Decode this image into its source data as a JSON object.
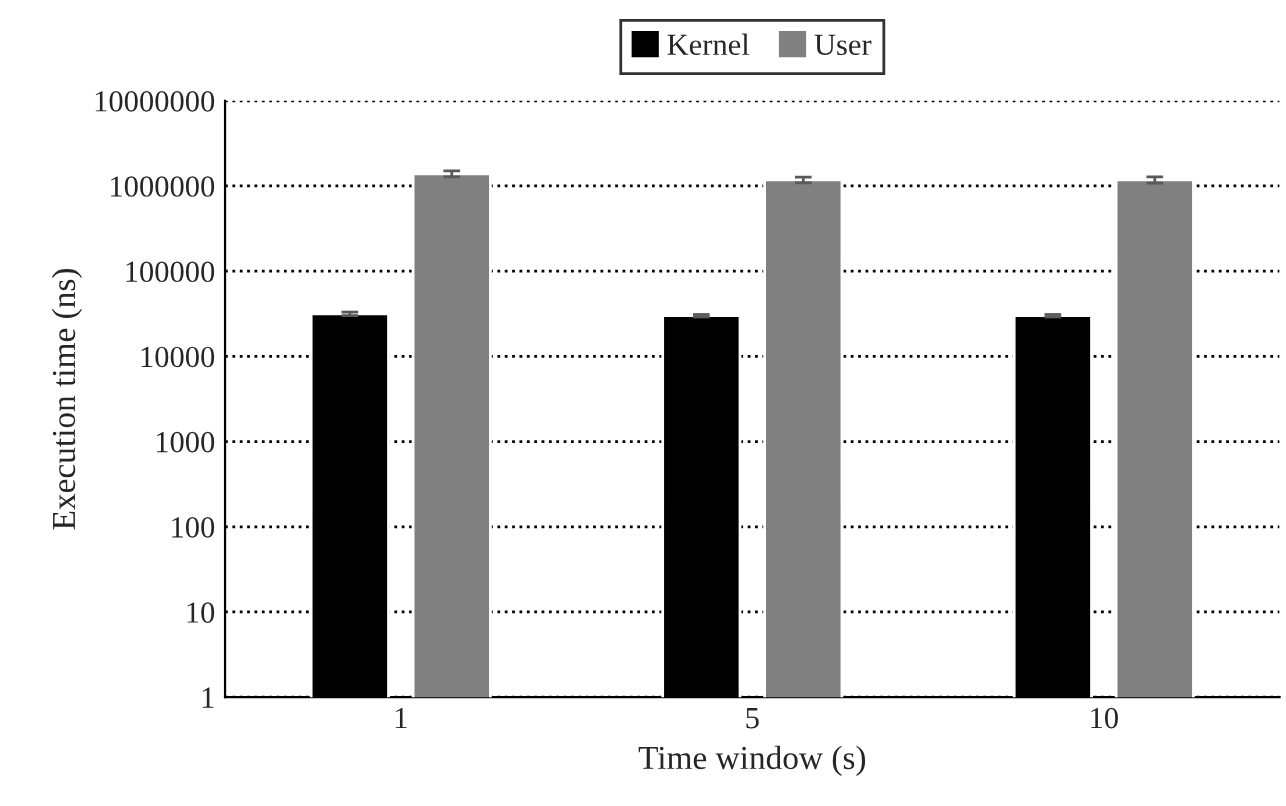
{
  "chart_data": {
    "type": "bar",
    "xlabel": "Time window (s)",
    "ylabel": "Execution time (ns)",
    "categories": [
      "1",
      "5",
      "10"
    ],
    "series": [
      {
        "name": "Kernel",
        "color": "#000000",
        "values": [
          31600,
          30000,
          30000
        ],
        "errors": [
          1500,
          1000,
          1000
        ]
      },
      {
        "name": "User",
        "color": "#808080",
        "values": [
          1390000,
          1180000,
          1180000
        ],
        "errors": [
          110000,
          90000,
          100000
        ]
      }
    ],
    "log": true,
    "ylim": [
      1,
      10000000
    ],
    "yticks": [
      1,
      10,
      100,
      1000,
      10000,
      100000,
      1000000,
      10000000
    ],
    "grid": "y",
    "legend": "top"
  }
}
